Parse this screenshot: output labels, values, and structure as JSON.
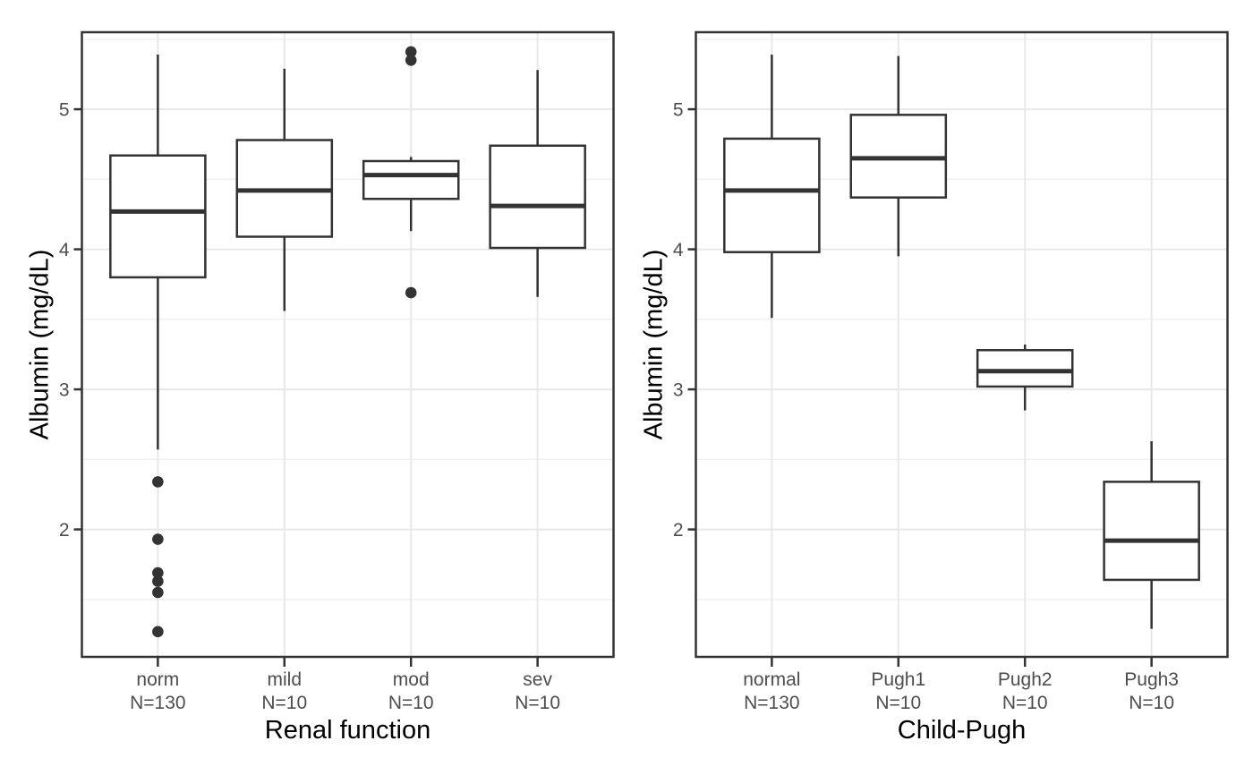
{
  "page": {
    "background": "#ffffff"
  },
  "style": {
    "box_stroke": "#333333",
    "box_fill": "#ffffff",
    "median_stroke": "#333333",
    "outlier_fill": "#333333",
    "grid_major": "#e8e8e8",
    "grid_minor": "#efefef",
    "panel_border": "#333333",
    "tick_mark_color": "#333333",
    "axis_text_color": "#4d4d4d",
    "axis_title_color": "#000000"
  },
  "chart_data": [
    {
      "type": "boxplot",
      "title": "",
      "xlabel": "Renal function",
      "ylabel": "Albumin (mg/dL)",
      "axis": {
        "ylim": [
          1.09,
          5.55
        ],
        "y_ticks": [
          5,
          4,
          3,
          2
        ],
        "y_tick_labels": [
          "5",
          "4",
          "3",
          "2"
        ],
        "y_minor": [
          5.5,
          4.5,
          3.5,
          2.5,
          1.5
        ],
        "grid": true,
        "legend": "none"
      },
      "series": [
        {
          "category": "norm",
          "n_label": "N=130",
          "whisker_low": 2.57,
          "q1": 3.8,
          "median": 4.27,
          "q3": 4.67,
          "whisker_high": 5.39,
          "outliers": [
            2.34,
            1.93,
            1.69,
            1.63,
            1.55,
            1.27
          ]
        },
        {
          "category": "mild",
          "n_label": "N=10",
          "whisker_low": 3.56,
          "q1": 4.09,
          "median": 4.42,
          "q3": 4.78,
          "whisker_high": 5.29,
          "outliers": []
        },
        {
          "category": "mod",
          "n_label": "N=10",
          "whisker_low": 4.13,
          "q1": 4.36,
          "median": 4.53,
          "q3": 4.63,
          "whisker_high": 4.66,
          "outliers": [
            5.41,
            5.35,
            3.69
          ]
        },
        {
          "category": "sev",
          "n_label": "N=10",
          "whisker_low": 3.66,
          "q1": 4.01,
          "median": 4.31,
          "q3": 4.74,
          "whisker_high": 5.28,
          "outliers": []
        }
      ]
    },
    {
      "type": "boxplot",
      "title": "",
      "xlabel": "Child-Pugh",
      "ylabel": "Albumin (mg/dL)",
      "axis": {
        "ylim": [
          1.09,
          5.55
        ],
        "y_ticks": [
          5,
          4,
          3,
          2
        ],
        "y_tick_labels": [
          "5",
          "4",
          "3",
          "2"
        ],
        "y_minor": [
          5.5,
          4.5,
          3.5,
          2.5,
          1.5
        ],
        "grid": true,
        "legend": "none"
      },
      "series": [
        {
          "category": "normal",
          "n_label": "N=130",
          "whisker_low": 3.51,
          "q1": 3.98,
          "median": 4.42,
          "q3": 4.79,
          "whisker_high": 5.39,
          "outliers": []
        },
        {
          "category": "Pugh1",
          "n_label": "N=10",
          "whisker_low": 3.95,
          "q1": 4.37,
          "median": 4.65,
          "q3": 4.96,
          "whisker_high": 5.38,
          "outliers": []
        },
        {
          "category": "Pugh2",
          "n_label": "N=10",
          "whisker_low": 2.85,
          "q1": 3.02,
          "median": 3.13,
          "q3": 3.28,
          "whisker_high": 3.32,
          "outliers": []
        },
        {
          "category": "Pugh3",
          "n_label": "N=10",
          "whisker_low": 1.29,
          "q1": 1.64,
          "median": 1.92,
          "q3": 2.34,
          "whisker_high": 2.63,
          "outliers": []
        }
      ]
    }
  ]
}
